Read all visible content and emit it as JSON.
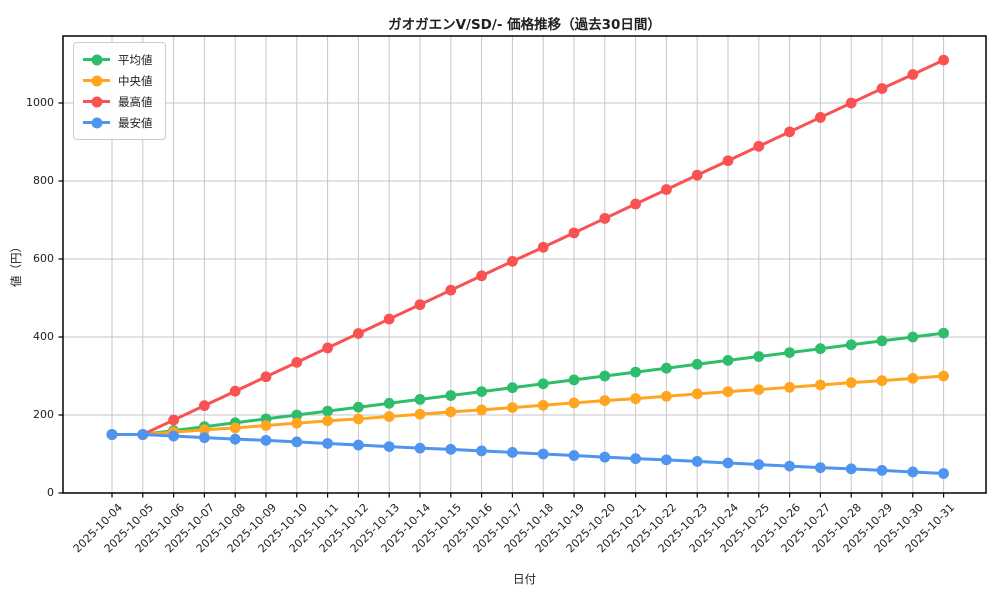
{
  "chart_data": {
    "type": "line",
    "title": "ガオガエンV/SD/- 価格推移（過去30日間）",
    "xlabel": "日付",
    "ylabel": "値（円）",
    "x": [
      "2025-10-04",
      "2025-10-05",
      "2025-10-06",
      "2025-10-07",
      "2025-10-08",
      "2025-10-09",
      "2025-10-10",
      "2025-10-11",
      "2025-10-12",
      "2025-10-13",
      "2025-10-14",
      "2025-10-15",
      "2025-10-16",
      "2025-10-17",
      "2025-10-18",
      "2025-10-19",
      "2025-10-20",
      "2025-10-21",
      "2025-10-22",
      "2025-10-23",
      "2025-10-24",
      "2025-10-25",
      "2025-10-26",
      "2025-10-27",
      "2025-10-28",
      "2025-10-29",
      "2025-10-30",
      "2025-10-31"
    ],
    "series": [
      {
        "key": "average",
        "name": "平均値",
        "color": "#2ebd6b",
        "values": [
          150,
          150,
          160,
          170,
          180,
          190,
          200,
          210,
          220,
          230,
          240,
          250,
          260,
          270,
          280,
          290,
          300,
          310,
          320,
          330,
          340,
          350,
          360,
          370,
          380,
          390,
          400,
          410
        ]
      },
      {
        "key": "median",
        "name": "中央値",
        "color": "#ffa51f",
        "values": [
          150,
          150,
          156,
          162,
          167,
          173,
          179,
          185,
          190,
          196,
          202,
          208,
          213,
          219,
          225,
          231,
          237,
          242,
          248,
          254,
          260,
          265,
          271,
          277,
          283,
          288,
          294,
          300
        ]
      },
      {
        "key": "max",
        "name": "最高値",
        "color": "#fa5252",
        "values": [
          150,
          150,
          187,
          224,
          261,
          298,
          335,
          372,
          409,
          446,
          483,
          520,
          557,
          594,
          630,
          667,
          704,
          741,
          778,
          815,
          852,
          889,
          926,
          963,
          1000,
          1037,
          1073,
          1110
        ]
      },
      {
        "key": "min",
        "name": "最安値",
        "color": "#4f94ef",
        "values": [
          150,
          150,
          146,
          142,
          138,
          135,
          131,
          127,
          123,
          119,
          115,
          112,
          108,
          104,
          100,
          96,
          92,
          88,
          85,
          81,
          77,
          73,
          69,
          65,
          62,
          58,
          54,
          50
        ]
      }
    ],
    "ylim": [
      0,
      1172
    ],
    "yticks": [
      0,
      200,
      400,
      600,
      800,
      1000
    ],
    "grid": true,
    "grid_color": "#c6c6c6",
    "axis_color": "#000000",
    "text_color": "#1f1f1f",
    "legend_position": "upper-left"
  }
}
